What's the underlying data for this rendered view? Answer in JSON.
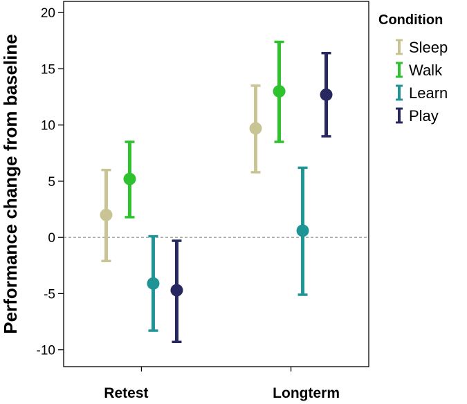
{
  "chart_data": {
    "type": "errorbar",
    "categories": [
      "Retest",
      "Longterm"
    ],
    "ylabel": "Performance change from baseline",
    "ylim": [
      -11.5,
      21
    ],
    "yticks": [
      -10,
      -5,
      0,
      5,
      10,
      15,
      20
    ],
    "reference_line": 0,
    "grid": false,
    "legend": {
      "title": "Condition",
      "placement": "right"
    },
    "series": [
      {
        "name": "Sleep",
        "color": "#c9c494",
        "mean": [
          2.0,
          9.7
        ],
        "low": [
          -2.1,
          5.8
        ],
        "high": [
          6.0,
          13.5
        ]
      },
      {
        "name": "Walk",
        "color": "#2ec22e",
        "mean": [
          5.2,
          13.0
        ],
        "low": [
          1.8,
          8.5
        ],
        "high": [
          8.5,
          17.4
        ]
      },
      {
        "name": "Learn",
        "color": "#1f9494",
        "mean": [
          -4.1,
          0.6
        ],
        "low": [
          -8.3,
          -5.1
        ],
        "high": [
          0.1,
          6.2
        ]
      },
      {
        "name": "Play",
        "color": "#282860",
        "mean": [
          -4.7,
          12.7
        ],
        "low": [
          -9.3,
          9.0
        ],
        "high": [
          -0.3,
          16.4
        ]
      }
    ]
  }
}
